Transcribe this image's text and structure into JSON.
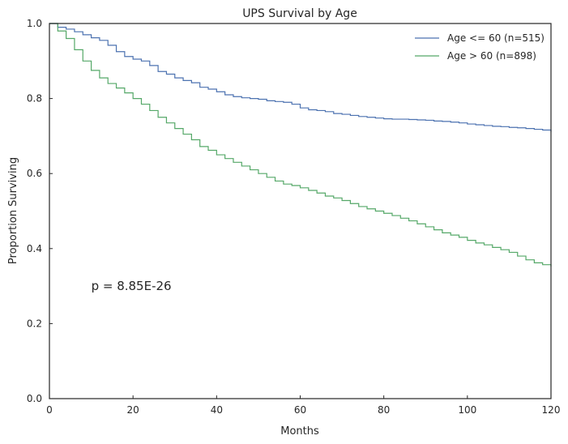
{
  "chart_data": {
    "type": "line",
    "step": true,
    "title": "UPS Survival by Age",
    "xlabel": "Months",
    "ylabel": "Proportion Surviving",
    "xlim": [
      0,
      120
    ],
    "ylim": [
      0,
      1
    ],
    "xticks": [
      0,
      20,
      40,
      60,
      80,
      100,
      120
    ],
    "yticks": [
      0.0,
      0.2,
      0.4,
      0.6,
      0.8,
      1.0
    ],
    "xtick_labels": [
      "0",
      "20",
      "40",
      "60",
      "80",
      "100",
      "120"
    ],
    "ytick_labels": [
      "0.0",
      "0.2",
      "0.4",
      "0.6",
      "0.8",
      "1.0"
    ],
    "grid": false,
    "legend_position": "top-right",
    "annotation": {
      "text": "p = 8.85E-26",
      "x": 10,
      "y": 0.3
    },
    "series": [
      {
        "name": "Age <= 60 (n=515)",
        "color": "#4c72b0",
        "x": [
          0,
          2,
          4,
          6,
          8,
          10,
          12,
          14,
          16,
          18,
          20,
          22,
          24,
          26,
          28,
          30,
          32,
          34,
          36,
          38,
          40,
          42,
          44,
          46,
          48,
          50,
          52,
          54,
          56,
          58,
          60,
          62,
          64,
          66,
          68,
          70,
          72,
          74,
          76,
          78,
          80,
          82,
          84,
          86,
          88,
          90,
          92,
          94,
          96,
          98,
          100,
          102,
          104,
          106,
          108,
          110,
          112,
          114,
          116,
          118,
          120
        ],
        "y": [
          1.0,
          0.99,
          0.985,
          0.978,
          0.97,
          0.962,
          0.955,
          0.942,
          0.925,
          0.912,
          0.905,
          0.9,
          0.888,
          0.872,
          0.865,
          0.855,
          0.848,
          0.842,
          0.83,
          0.825,
          0.818,
          0.81,
          0.805,
          0.802,
          0.8,
          0.798,
          0.794,
          0.792,
          0.79,
          0.785,
          0.775,
          0.77,
          0.768,
          0.765,
          0.76,
          0.758,
          0.755,
          0.752,
          0.75,
          0.748,
          0.746,
          0.745,
          0.745,
          0.744,
          0.743,
          0.742,
          0.74,
          0.739,
          0.737,
          0.735,
          0.732,
          0.73,
          0.728,
          0.726,
          0.725,
          0.723,
          0.722,
          0.72,
          0.718,
          0.716,
          0.71
        ]
      },
      {
        "name": "Age > 60 (n=898)",
        "color": "#55a868",
        "x": [
          0,
          2,
          4,
          6,
          8,
          10,
          12,
          14,
          16,
          18,
          20,
          22,
          24,
          26,
          28,
          30,
          32,
          34,
          36,
          38,
          40,
          42,
          44,
          46,
          48,
          50,
          52,
          54,
          56,
          58,
          60,
          62,
          64,
          66,
          68,
          70,
          72,
          74,
          76,
          78,
          80,
          82,
          84,
          86,
          88,
          90,
          92,
          94,
          96,
          98,
          100,
          102,
          104,
          106,
          108,
          110,
          112,
          114,
          116,
          118,
          120
        ],
        "y": [
          1.0,
          0.98,
          0.96,
          0.93,
          0.9,
          0.875,
          0.855,
          0.84,
          0.828,
          0.815,
          0.8,
          0.785,
          0.768,
          0.75,
          0.735,
          0.72,
          0.705,
          0.69,
          0.672,
          0.662,
          0.65,
          0.64,
          0.63,
          0.62,
          0.61,
          0.6,
          0.59,
          0.58,
          0.572,
          0.568,
          0.562,
          0.555,
          0.548,
          0.54,
          0.535,
          0.528,
          0.52,
          0.512,
          0.506,
          0.5,
          0.494,
          0.488,
          0.481,
          0.474,
          0.466,
          0.458,
          0.45,
          0.442,
          0.436,
          0.43,
          0.422,
          0.415,
          0.41,
          0.403,
          0.397,
          0.39,
          0.38,
          0.37,
          0.362,
          0.357,
          0.352
        ]
      }
    ]
  }
}
